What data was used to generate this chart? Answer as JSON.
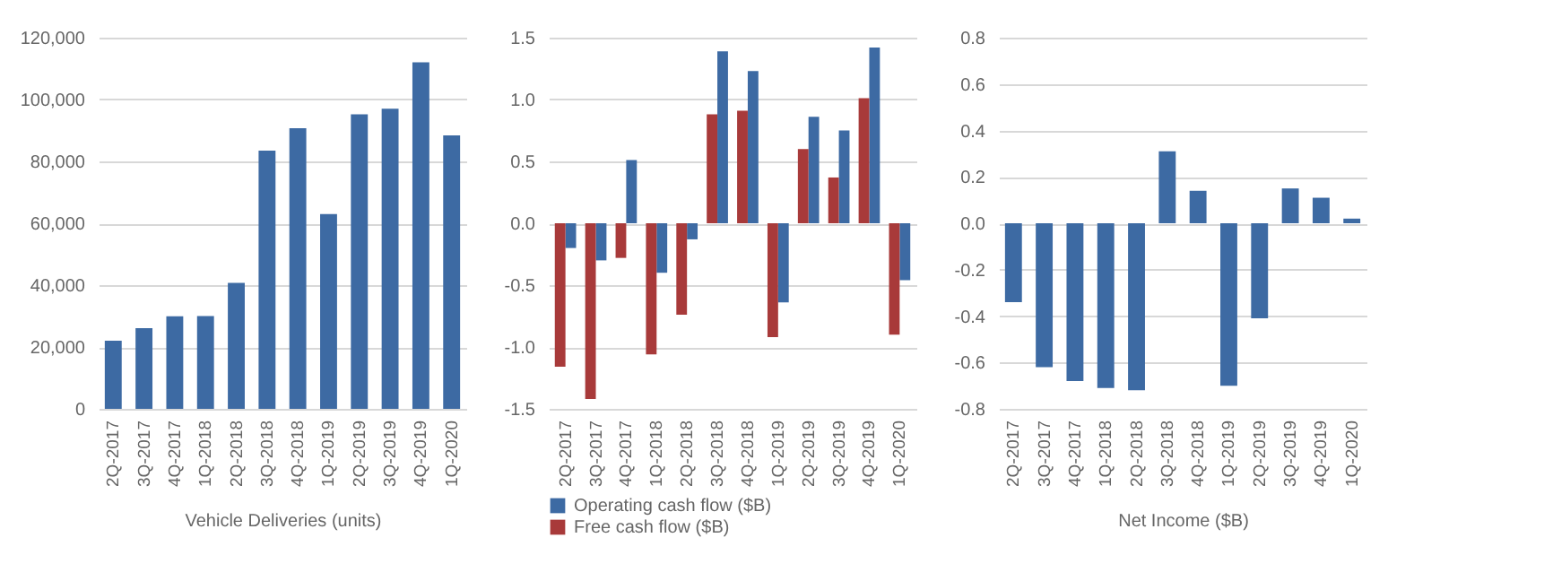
{
  "chart_data": [
    {
      "type": "bar",
      "xlabel": "Vehicle Deliveries (units)",
      "categories": [
        "2Q-2017",
        "3Q-2017",
        "4Q-2017",
        "1Q-2018",
        "2Q-2018",
        "3Q-2018",
        "4Q-2018",
        "1Q-2019",
        "2Q-2019",
        "3Q-2019",
        "4Q-2019",
        "1Q-2020"
      ],
      "values": [
        22000,
        26100,
        29900,
        30000,
        40700,
        83500,
        90700,
        63000,
        95200,
        97000,
        112000,
        88400
      ],
      "color": "#3d6aa3",
      "ylim": [
        0,
        120000
      ],
      "yticks": [
        0,
        {
          "value": 20000,
          "label": "20,000"
        },
        {
          "value": 40000,
          "label": "40,000"
        },
        {
          "value": 60000,
          "label": "60,000"
        },
        {
          "value": 80000,
          "label": "80,000"
        },
        {
          "value": 100000,
          "label": "100,000"
        },
        {
          "value": 120000,
          "label": "120,000"
        }
      ],
      "grid": "y"
    },
    {
      "type": "bar",
      "categories": [
        "2Q-2017",
        "3Q-2017",
        "4Q-2017",
        "1Q-2018",
        "2Q-2018",
        "3Q-2018",
        "4Q-2018",
        "1Q-2019",
        "2Q-2019",
        "3Q-2019",
        "4Q-2019",
        "1Q-2020"
      ],
      "series": [
        {
          "name": "Operating cash flow ($B)",
          "color": "#3d6aa3",
          "values": [
            -0.2,
            -0.3,
            0.51,
            -0.4,
            -0.13,
            1.39,
            1.23,
            -0.64,
            0.86,
            0.75,
            1.42,
            -0.46
          ]
        },
        {
          "name": "Free cash flow ($B)",
          "color": "#a83a3a",
          "values": [
            -1.16,
            -1.42,
            -0.28,
            -1.06,
            -0.74,
            0.88,
            0.91,
            -0.92,
            0.6,
            0.37,
            1.01,
            -0.9
          ]
        }
      ],
      "ylim": [
        -1.5,
        1.5
      ],
      "yticks": [
        -1.5,
        {
          "value": -1,
          "label": "-1.0"
        },
        -0.5,
        {
          "value": 0,
          "label": "0.0"
        },
        0.5,
        {
          "value": 1,
          "label": "1.0"
        },
        1.5
      ],
      "grid": "y",
      "legend": "bottom"
    },
    {
      "type": "bar",
      "xlabel": "Net Income ($B)",
      "categories": [
        "2Q-2017",
        "3Q-2017",
        "4Q-2017",
        "1Q-2018",
        "2Q-2018",
        "3Q-2018",
        "4Q-2018",
        "1Q-2019",
        "2Q-2019",
        "3Q-2019",
        "4Q-2019",
        "1Q-2020"
      ],
      "values": [
        -0.34,
        -0.62,
        -0.68,
        -0.71,
        -0.72,
        0.31,
        0.14,
        -0.7,
        -0.41,
        0.15,
        0.11,
        0.02
      ],
      "color": "#3d6aa3",
      "ylim": [
        -0.8,
        0.8
      ],
      "yticks": [
        -0.8,
        -0.6,
        -0.4,
        -0.2,
        {
          "value": 0,
          "label": "0.0"
        },
        0.2,
        0.4,
        0.6,
        0.8
      ],
      "grid": "y"
    }
  ]
}
